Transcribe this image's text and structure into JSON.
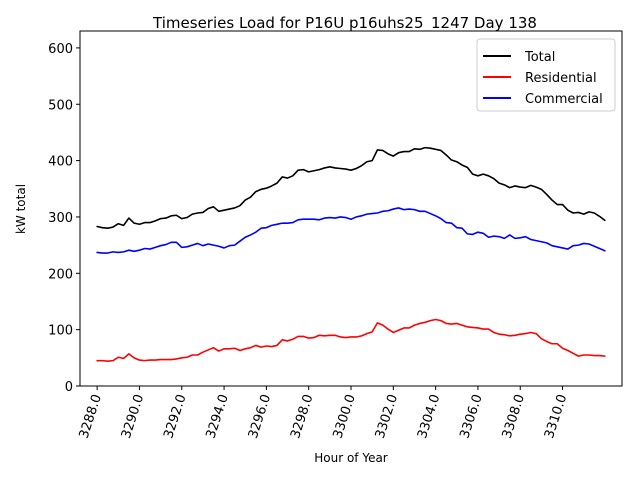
{
  "chart_data": {
    "type": "line",
    "title": "Timeseries Load for P16U p16uhs25_1247  Day 138",
    "xlabel": "Hour of Year",
    "ylabel": "kW total",
    "xlim": [
      3287.19,
      3312.81
    ],
    "ylim": [
      0,
      630
    ],
    "xticks": [
      3288.0,
      3290.0,
      3292.0,
      3294.0,
      3296.0,
      3298.0,
      3300.0,
      3302.0,
      3304.0,
      3306.0,
      3308.0,
      3310.0
    ],
    "xtick_labels": [
      "3288.0",
      "3290.0",
      "3292.0",
      "3294.0",
      "3296.0",
      "3298.0",
      "3300.0",
      "3302.0",
      "3304.0",
      "3306.0",
      "3308.0",
      "3310.0"
    ],
    "yticks": [
      0,
      100,
      200,
      300,
      400,
      500,
      600
    ],
    "ytick_labels": [
      "0",
      "100",
      "200",
      "300",
      "400",
      "500",
      "600"
    ],
    "legend_position": "top-right",
    "x_start": 3288.0,
    "x_step": 0.25,
    "series": [
      {
        "name": "Total",
        "color": "#000000",
        "values": [
          283,
          281,
          280,
          282,
          288,
          285,
          298,
          289,
          287,
          290,
          290,
          293,
          297,
          298,
          302,
          303,
          297,
          299,
          305,
          307,
          308,
          315,
          318,
          310,
          312,
          314,
          316,
          320,
          330,
          335,
          345,
          349,
          351,
          355,
          360,
          371,
          369,
          373,
          383,
          384,
          380,
          382,
          384,
          387,
          389,
          387,
          386,
          385,
          383,
          386,
          391,
          398,
          400,
          419,
          418,
          412,
          408,
          414,
          416,
          416,
          421,
          420,
          423,
          422,
          420,
          418,
          410,
          401,
          398,
          392,
          388,
          376,
          373,
          376,
          373,
          368,
          360,
          357,
          352,
          355,
          353,
          352,
          356,
          353,
          349,
          340,
          330,
          322,
          322,
          312,
          307,
          308,
          305,
          309,
          307,
          301,
          294
        ]
      },
      {
        "name": "Residential",
        "color": "#ff0000",
        "values": [
          45,
          45,
          44,
          45,
          51,
          49,
          57,
          50,
          46,
          45,
          46,
          46,
          47,
          47,
          47,
          48,
          50,
          51,
          55,
          55,
          60,
          64,
          68,
          62,
          66,
          66,
          67,
          63,
          66,
          68,
          72,
          69,
          71,
          70,
          72,
          82,
          80,
          83,
          88,
          88,
          85,
          86,
          90,
          89,
          90,
          90,
          87,
          86,
          87,
          87,
          89,
          93,
          96,
          112,
          108,
          101,
          95,
          99,
          103,
          103,
          108,
          111,
          113,
          116,
          118,
          116,
          111,
          110,
          111,
          108,
          105,
          104,
          103,
          101,
          101,
          95,
          92,
          91,
          89,
          90,
          92,
          93,
          95,
          93,
          84,
          79,
          75,
          75,
          67,
          63,
          58,
          53,
          55,
          55,
          54,
          54,
          53
        ]
      },
      {
        "name": "Commercial",
        "color": "#0000ff",
        "values": [
          237,
          236,
          236,
          238,
          237,
          238,
          241,
          239,
          241,
          244,
          243,
          246,
          249,
          251,
          255,
          255,
          246,
          247,
          250,
          253,
          249,
          252,
          250,
          248,
          245,
          249,
          250,
          257,
          264,
          268,
          273,
          280,
          281,
          285,
          287,
          289,
          289,
          290,
          295,
          296,
          296,
          296,
          295,
          298,
          299,
          298,
          300,
          299,
          296,
          300,
          302,
          305,
          306,
          307,
          310,
          311,
          314,
          316,
          313,
          314,
          313,
          310,
          310,
          306,
          302,
          297,
          290,
          289,
          281,
          280,
          270,
          269,
          273,
          271,
          264,
          266,
          265,
          262,
          268,
          262,
          263,
          265,
          260,
          258,
          256,
          254,
          249,
          247,
          245,
          243,
          249,
          250,
          253,
          252,
          248,
          244,
          240
        ]
      }
    ]
  }
}
